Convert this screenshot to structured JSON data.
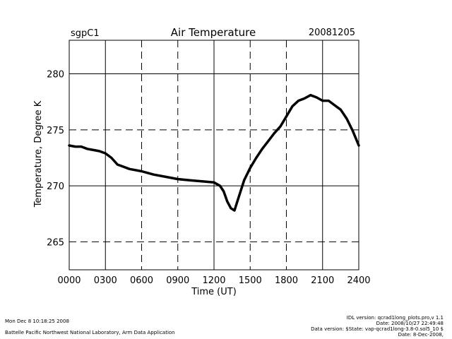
{
  "header": {
    "site": "sgpC1",
    "title": "Air Temperature",
    "date": "20081205"
  },
  "chart_data": {
    "type": "line",
    "title": "Air Temperature",
    "xlabel": "Time (UT)",
    "ylabel": "Temperature, Degree K",
    "xlim": [
      0,
      24
    ],
    "ylim": [
      262.5,
      283
    ],
    "x_ticks": [
      0,
      3,
      6,
      9,
      12,
      15,
      18,
      21,
      24
    ],
    "x_tick_labels": [
      "0000",
      "0300",
      "0600",
      "0900",
      "1200",
      "1500",
      "1800",
      "2100",
      "2400"
    ],
    "y_ticks": [
      265,
      270,
      275,
      280
    ],
    "y_tick_labels": [
      "265",
      "270",
      "275",
      "280"
    ],
    "grid": true,
    "series": [
      {
        "x": [
          0,
          0.5,
          1.0,
          1.5,
          2.0,
          2.5,
          3.0,
          3.5,
          4.0,
          4.5,
          5.0,
          6.0,
          7.0,
          8.0,
          9.0,
          10.0,
          11.0,
          12.0,
          12.5,
          12.8,
          13.1,
          13.4,
          13.7,
          13.9,
          14.2,
          14.5,
          15.0,
          15.5,
          16.0,
          16.5,
          17.0,
          17.5,
          18.0,
          18.5,
          19.0,
          19.5,
          20.0,
          20.5,
          21.0,
          21.5,
          22.0,
          22.5,
          23.0,
          23.5,
          24.0
        ],
        "y": [
          273.6,
          273.5,
          273.5,
          273.3,
          273.2,
          273.1,
          272.9,
          272.5,
          271.9,
          271.7,
          271.5,
          271.3,
          271.0,
          270.8,
          270.6,
          270.5,
          270.4,
          270.3,
          270.0,
          269.5,
          268.6,
          268.0,
          267.8,
          268.5,
          269.5,
          270.5,
          271.6,
          272.5,
          273.3,
          274.0,
          274.7,
          275.3,
          276.2,
          277.1,
          277.6,
          277.8,
          278.1,
          277.9,
          277.6,
          277.6,
          277.2,
          276.8,
          276.0,
          274.9,
          273.6
        ]
      }
    ]
  },
  "footer": {
    "timestamp": "Mon Dec  8 10:18:25 2008",
    "org": "Battelle Pacific Northwest National Laboratory, Arm Data Application",
    "idl": "IDL version: qcrad1long_plots.pro,v 1.1",
    "date": "Date: 2008/10/27 22:49:48",
    "data_version": "Data version: $State: vap-qcrad1long-3.8-0.sol5_10 $",
    "data_date": "Date: 8-Dec-2008,"
  }
}
